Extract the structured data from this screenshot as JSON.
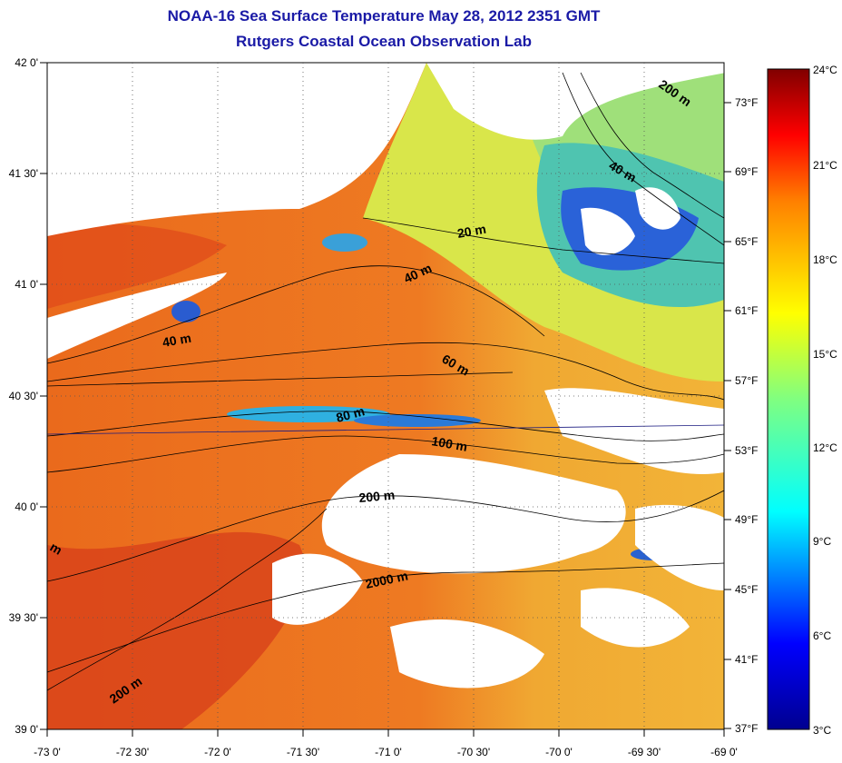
{
  "title": "NOAA-16 Sea Surface Temperature May 28, 2012 2351 GMT",
  "subtitle": "Rutgers Coastal Ocean Observation Lab",
  "lon_ticks": [
    "-73 0'",
    "-72 30'",
    "-72 0'",
    "-71 30'",
    "-71 0'",
    "-70 30'",
    "-70 0'",
    "-69 30'",
    "-69 0'"
  ],
  "lat_ticks": [
    "42 0'",
    "41 30'",
    "41 0'",
    "40 30'",
    "40 0'",
    "39 30'",
    "39 0'"
  ],
  "fahrenheit_ticks": [
    "73°F",
    "69°F",
    "65°F",
    "61°F",
    "57°F",
    "53°F",
    "49°F",
    "45°F",
    "41°F",
    "37°F"
  ],
  "celsius_ticks": [
    "24°C",
    "21°C",
    "18°C",
    "15°C",
    "12°C",
    "9°C",
    "6°C",
    "3°C"
  ],
  "colorbar_range_c": [
    3,
    24
  ],
  "colors": {
    "land_mask": "#ffffff",
    "warm": "#e85a1a",
    "cool": "#1e5cd6",
    "mid": "#f2c418"
  },
  "depth_labels": [
    {
      "text": "20 m"
    },
    {
      "text": "40 m"
    },
    {
      "text": "40 m"
    },
    {
      "text": "40 m"
    },
    {
      "text": "60 m"
    },
    {
      "text": "80 m"
    },
    {
      "text": "100 m"
    },
    {
      "text": "200 m"
    },
    {
      "text": "200 m"
    },
    {
      "text": "200 m"
    },
    {
      "text": "2000 m"
    },
    {
      "text": "m"
    }
  ]
}
